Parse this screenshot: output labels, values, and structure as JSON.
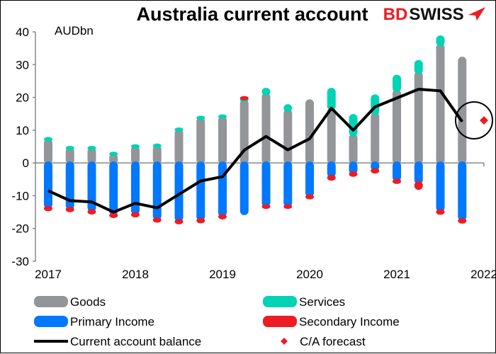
{
  "chart_data": {
    "type": "bar",
    "title": "Australia current account",
    "ylabel": "AUDbn",
    "ylim": [
      -30,
      40
    ],
    "yticks": [
      40,
      30,
      20,
      10,
      0,
      -10,
      -20,
      -30
    ],
    "xticks": [
      "2017",
      "2018",
      "2019",
      "2020",
      "2021",
      "2022"
    ],
    "xlim": [
      "2017",
      "2022"
    ],
    "grid": false,
    "legend_placement": "bottom",
    "categories": [
      "2017Q1",
      "2017Q2",
      "2017Q3",
      "2017Q4",
      "2018Q1",
      "2018Q2",
      "2018Q3",
      "2018Q4",
      "2019Q1",
      "2019Q2",
      "2019Q3",
      "2019Q4",
      "2020Q1",
      "2020Q2",
      "2020Q3",
      "2020Q4",
      "2021Q1",
      "2021Q2",
      "2021Q3",
      "2021Q4"
    ],
    "series": [
      {
        "name": "Goods",
        "kind": "stacked-bar",
        "color": "#939598",
        "values": [
          7,
          4.3,
          4.3,
          2.5,
          4.8,
          5,
          9.9,
          13.5,
          13.9,
          19,
          21,
          16,
          19,
          16.5,
          8.5,
          15,
          22,
          27.5,
          36,
          32
        ]
      },
      {
        "name": "Services",
        "kind": "stacked-bar",
        "color": "#00D4B4",
        "values": [
          0.5,
          0.5,
          0.5,
          0.5,
          0.5,
          0.5,
          0.5,
          0.5,
          0.5,
          0.5,
          1.5,
          1.5,
          0,
          6,
          6,
          5.5,
          4.5,
          3.5,
          2.5,
          0
        ]
      },
      {
        "name": "Primary Income",
        "kind": "stacked-bar",
        "color": "#0078FF",
        "values": [
          -13.5,
          -13.8,
          -14.5,
          -15.6,
          -15.4,
          -17,
          -17.5,
          -17.2,
          -16,
          -15.5,
          -13,
          -13,
          -10,
          -4,
          -3,
          -2,
          -5.2,
          -6,
          -14.5,
          -17.2
        ]
      },
      {
        "name": "Secondary Income",
        "kind": "stacked-bar",
        "color": "#ED1C24",
        "values": [
          -0.8,
          -0.8,
          -0.8,
          -0.8,
          -0.8,
          -0.8,
          -0.8,
          -0.8,
          -0.8,
          0.5,
          -0.6,
          -0.6,
          -0.7,
          -1,
          -0.8,
          -0.8,
          -0.8,
          -1.8,
          -0.9,
          -0.9
        ]
      },
      {
        "name": "Current account balance",
        "kind": "line",
        "color": "#000000",
        "values": [
          -8.5,
          -11.5,
          -11.9,
          -15,
          -12.3,
          -13.7,
          -9.6,
          -5.5,
          -4.2,
          3.9,
          8.1,
          4,
          7.4,
          16.7,
          10,
          17.1,
          19.8,
          22.5,
          22,
          12.6
        ]
      },
      {
        "name": "C/A forecast",
        "kind": "marker",
        "color": "#ED1C24",
        "x": "2022Q1",
        "value": 13
      }
    ]
  },
  "brand": {
    "logo_text_red": "BD",
    "logo_text_dark": "SWISS",
    "red": "#ED1C24"
  }
}
